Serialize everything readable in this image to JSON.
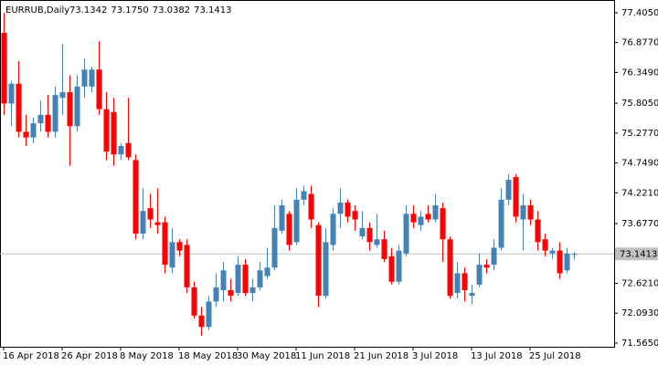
{
  "chart_data": {
    "type": "candlestick",
    "title": "EURRUB,Daily",
    "header_values": [
      "73.1342",
      "73.1750",
      "73.0382",
      "73.1413"
    ],
    "up_color": "#4682b4",
    "down_color": "#ff0000",
    "ylim": [
      71.5,
      77.63
    ],
    "yticks": [
      {
        "value": 77.405,
        "label": "77.4050"
      },
      {
        "value": 76.877,
        "label": "76.8770"
      },
      {
        "value": 76.349,
        "label": "76.3490"
      },
      {
        "value": 75.805,
        "label": "75.8050"
      },
      {
        "value": 75.277,
        "label": "75.2770"
      },
      {
        "value": 74.749,
        "label": "74.7490"
      },
      {
        "value": 74.221,
        "label": "74.2210"
      },
      {
        "value": 73.677,
        "label": "73.6770"
      },
      {
        "value": 73.149,
        "label": "73.1490"
      },
      {
        "value": 72.621,
        "label": "72.6210"
      },
      {
        "value": 72.093,
        "label": "72.0930"
      },
      {
        "value": 71.565,
        "label": "71.5650"
      }
    ],
    "price_line": {
      "value": 73.1413,
      "label": "73.1413"
    },
    "categories": [
      "16 Apr 2018",
      null,
      null,
      null,
      null,
      null,
      null,
      null,
      "26 Apr 2018",
      null,
      null,
      null,
      null,
      null,
      null,
      null,
      "8 May 2018",
      null,
      null,
      null,
      null,
      null,
      null,
      null,
      "18 May 2018",
      null,
      null,
      null,
      null,
      null,
      null,
      null,
      "30 May 2018",
      null,
      null,
      null,
      null,
      null,
      null,
      null,
      "11 Jun 2018",
      null,
      null,
      null,
      null,
      null,
      null,
      null,
      "21 Jun 2018",
      null,
      null,
      null,
      null,
      null,
      null,
      null,
      "3 Jul 2018",
      null,
      null,
      null,
      null,
      null,
      null,
      null,
      "13 Jul 2018",
      null,
      null,
      null,
      null,
      null,
      null,
      null,
      "25 Jul 2018",
      null,
      null,
      null,
      null,
      null,
      null
    ],
    "open": [
      77.05,
      75.8,
      76.15,
      75.3,
      75.2,
      75.45,
      75.6,
      75.3,
      75.9,
      76.0,
      75.4,
      76.1,
      76.1,
      76.4,
      75.7,
      75.65,
      74.9,
      75.1,
      74.8,
      73.5,
      73.95,
      73.7,
      73.7,
      72.9,
      73.35,
      73.3,
      72.55,
      72.05,
      71.85,
      72.3,
      72.5,
      72.5,
      72.45,
      72.95,
      72.45,
      72.55,
      72.75,
      72.9,
      73.55,
      73.85,
      73.35,
      74.1,
      74.2,
      73.65,
      72.4,
      73.3,
      73.85,
      74.05,
      73.9,
      73.45,
      73.6,
      73.3,
      73.4,
      73.1,
      72.65,
      73.15,
      73.85,
      73.65,
      73.85,
      73.75,
      73.95,
      73.4,
      72.45,
      72.8,
      72.4,
      72.6,
      72.95,
      72.95,
      73.25,
      74.1,
      74.5,
      73.75,
      74.0,
      73.75,
      73.4,
      73.15,
      73.2,
      72.85,
      73.1342
    ],
    "high": [
      77.4,
      76.2,
      76.55,
      75.6,
      75.55,
      75.85,
      75.95,
      76.1,
      76.85,
      76.3,
      76.3,
      76.6,
      76.45,
      76.9,
      76.0,
      75.9,
      75.1,
      75.9,
      74.9,
      74.3,
      74.2,
      74.3,
      73.8,
      73.6,
      73.4,
      73.4,
      72.65,
      72.2,
      72.4,
      72.8,
      73.0,
      72.7,
      73.1,
      73.05,
      72.7,
      73.0,
      73.25,
      74.0,
      74.1,
      73.9,
      74.3,
      74.35,
      74.35,
      73.7,
      73.6,
      73.95,
      74.3,
      74.1,
      74.0,
      73.9,
      73.7,
      73.85,
      73.55,
      73.25,
      73.3,
      74.0,
      74.0,
      73.9,
      74.0,
      74.2,
      74.05,
      73.45,
      73.0,
      72.9,
      72.6,
      73.15,
      73.05,
      73.4,
      74.3,
      74.55,
      74.55,
      74.2,
      74.1,
      73.9,
      73.5,
      73.25,
      73.35,
      73.25,
      73.175
    ],
    "low": [
      75.6,
      75.4,
      75.2,
      75.05,
      75.1,
      75.3,
      75.2,
      75.2,
      75.6,
      74.7,
      75.3,
      75.9,
      76.0,
      75.6,
      74.8,
      74.7,
      74.8,
      74.8,
      73.4,
      73.4,
      73.6,
      73.5,
      72.8,
      72.8,
      73.1,
      72.45,
      72.0,
      71.7,
      71.8,
      72.2,
      72.3,
      72.3,
      72.4,
      72.4,
      72.3,
      72.5,
      72.7,
      72.85,
      73.5,
      73.2,
      73.3,
      74.0,
      73.6,
      72.2,
      72.35,
      73.2,
      73.6,
      73.7,
      73.55,
      73.4,
      73.2,
      73.25,
      73.0,
      72.6,
      72.6,
      73.1,
      73.6,
      73.55,
      73.7,
      73.7,
      73.0,
      72.35,
      72.35,
      72.3,
      72.25,
      72.55,
      72.8,
      72.85,
      73.2,
      74.0,
      73.7,
      73.2,
      73.65,
      73.2,
      73.1,
      73.05,
      72.7,
      72.8,
      73.0382
    ],
    "close": [
      75.8,
      76.15,
      75.3,
      75.2,
      75.45,
      75.6,
      75.3,
      75.95,
      76.0,
      75.4,
      76.1,
      76.4,
      76.4,
      75.7,
      74.95,
      74.9,
      75.05,
      74.85,
      73.5,
      73.9,
      73.75,
      73.65,
      72.95,
      73.35,
      73.2,
      72.55,
      72.05,
      71.85,
      72.3,
      72.55,
      72.85,
      72.4,
      72.95,
      72.45,
      72.55,
      72.85,
      72.9,
      73.6,
      74.0,
      73.3,
      74.1,
      74.25,
      73.75,
      72.4,
      73.35,
      73.85,
      74.05,
      73.8,
      73.75,
      73.6,
      73.35,
      73.4,
      73.05,
      72.65,
      73.2,
      73.85,
      73.7,
      73.8,
      73.75,
      74.0,
      73.4,
      72.4,
      72.8,
      72.5,
      72.45,
      72.95,
      72.9,
      73.25,
      74.1,
      74.45,
      73.8,
      74.0,
      73.75,
      73.35,
      73.2,
      73.2,
      72.8,
      73.15,
      73.1413
    ]
  }
}
